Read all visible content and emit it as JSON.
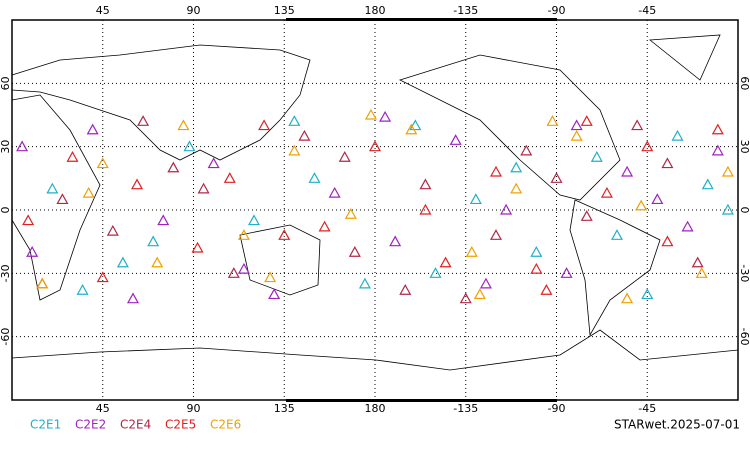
{
  "chart_data": {
    "type": "scatter",
    "footer": "STARwet.2025-07-01",
    "xlim": [
      0,
      360
    ],
    "ylim": [
      -90,
      90
    ],
    "xticks": [
      45,
      90,
      135,
      180,
      {
        "value": 225,
        "label": "-135"
      },
      {
        "value": 270,
        "label": "-90"
      },
      {
        "value": 315,
        "label": "-45"
      }
    ],
    "yticks": [
      60,
      30,
      0,
      -30,
      -60
    ],
    "grid": true,
    "series": [
      {
        "name": "C2E1",
        "color": "#20b0c8",
        "x": [
          20,
          55,
          88,
          120,
          150,
          175,
          200,
          230,
          260,
          290,
          315,
          345,
          35,
          140,
          210,
          300,
          330,
          70,
          250,
          355
        ],
        "values": [
          10,
          -25,
          30,
          -5,
          15,
          -35,
          40,
          5,
          -20,
          25,
          -40,
          12,
          -38,
          42,
          -30,
          -12,
          35,
          -15,
          20,
          0
        ]
      },
      {
        "name": "C2E2",
        "color": "#a020c0",
        "x": [
          10,
          40,
          75,
          100,
          130,
          160,
          190,
          220,
          245,
          275,
          305,
          335,
          60,
          185,
          280,
          350,
          115,
          235,
          320,
          5
        ],
        "values": [
          -20,
          38,
          -5,
          22,
          -40,
          8,
          -15,
          33,
          0,
          -30,
          18,
          -8,
          -42,
          44,
          40,
          28,
          -28,
          -35,
          5,
          30
        ]
      },
      {
        "name": "C2E4",
        "color": "#b02848",
        "x": [
          25,
          50,
          80,
          110,
          145,
          170,
          205,
          225,
          255,
          285,
          310,
          340,
          95,
          165,
          270,
          15,
          195,
          325,
          240,
          65
        ],
        "values": [
          5,
          -10,
          20,
          -30,
          35,
          -20,
          12,
          -42,
          28,
          -3,
          40,
          -25,
          10,
          25,
          15,
          -35,
          -38,
          22,
          -12,
          42
        ]
      },
      {
        "name": "C2E5",
        "color": "#e02020",
        "x": [
          30,
          62,
          92,
          125,
          155,
          180,
          215,
          240,
          265,
          295,
          325,
          350,
          45,
          135,
          205,
          285,
          108,
          260,
          315,
          8
        ],
        "values": [
          25,
          12,
          -18,
          40,
          -8,
          30,
          -25,
          18,
          -38,
          8,
          -15,
          38,
          -32,
          -12,
          0,
          42,
          15,
          -28,
          30,
          -5
        ]
      },
      {
        "name": "C2E6",
        "color": "#f0a000",
        "x": [
          15,
          45,
          85,
          115,
          140,
          168,
          198,
          228,
          250,
          280,
          312,
          342,
          72,
          178,
          232,
          305,
          128,
          355,
          268,
          38
        ],
        "values": [
          -35,
          22,
          40,
          -12,
          28,
          -2,
          38,
          -20,
          10,
          35,
          2,
          -30,
          -25,
          45,
          -40,
          -42,
          -32,
          18,
          42,
          8
        ]
      }
    ]
  }
}
